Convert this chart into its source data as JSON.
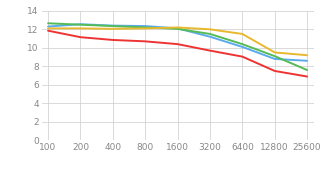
{
  "iso_values": [
    100,
    200,
    400,
    800,
    1600,
    3200,
    6400,
    12800,
    25600
  ],
  "fujifilm_xh2s": [
    12.3,
    12.55,
    12.4,
    12.35,
    12.1,
    11.2,
    10.1,
    8.8,
    8.6
  ],
  "canon_eosr6": [
    12.65,
    12.5,
    12.35,
    12.2,
    12.05,
    11.5,
    10.4,
    9.1,
    7.6
  ],
  "nikon_z6ii": [
    12.1,
    12.1,
    12.05,
    12.1,
    12.2,
    12.0,
    11.5,
    9.5,
    9.2
  ],
  "sony_a6600": [
    11.85,
    11.15,
    10.85,
    10.7,
    10.4,
    9.7,
    9.05,
    7.5,
    6.9
  ],
  "colors": {
    "fujifilm_xh2s": "#5aabee",
    "canon_eosr6": "#55bb55",
    "nikon_z6ii": "#e8b830",
    "sony_a6600": "#ee3333"
  },
  "iso_tick_labels": [
    "100",
    "200",
    "400",
    "800",
    "1600",
    "3200",
    "6400",
    "12800",
    "25600"
  ],
  "ylim": [
    0,
    14
  ],
  "yticks": [
    0,
    2,
    4,
    6,
    8,
    10,
    12,
    14
  ],
  "background_color": "#ffffff",
  "grid_color": "#cccccc",
  "tick_color": "#888888",
  "font_size": 6.5,
  "legend_font_size": 6.0,
  "linewidth": 1.4
}
